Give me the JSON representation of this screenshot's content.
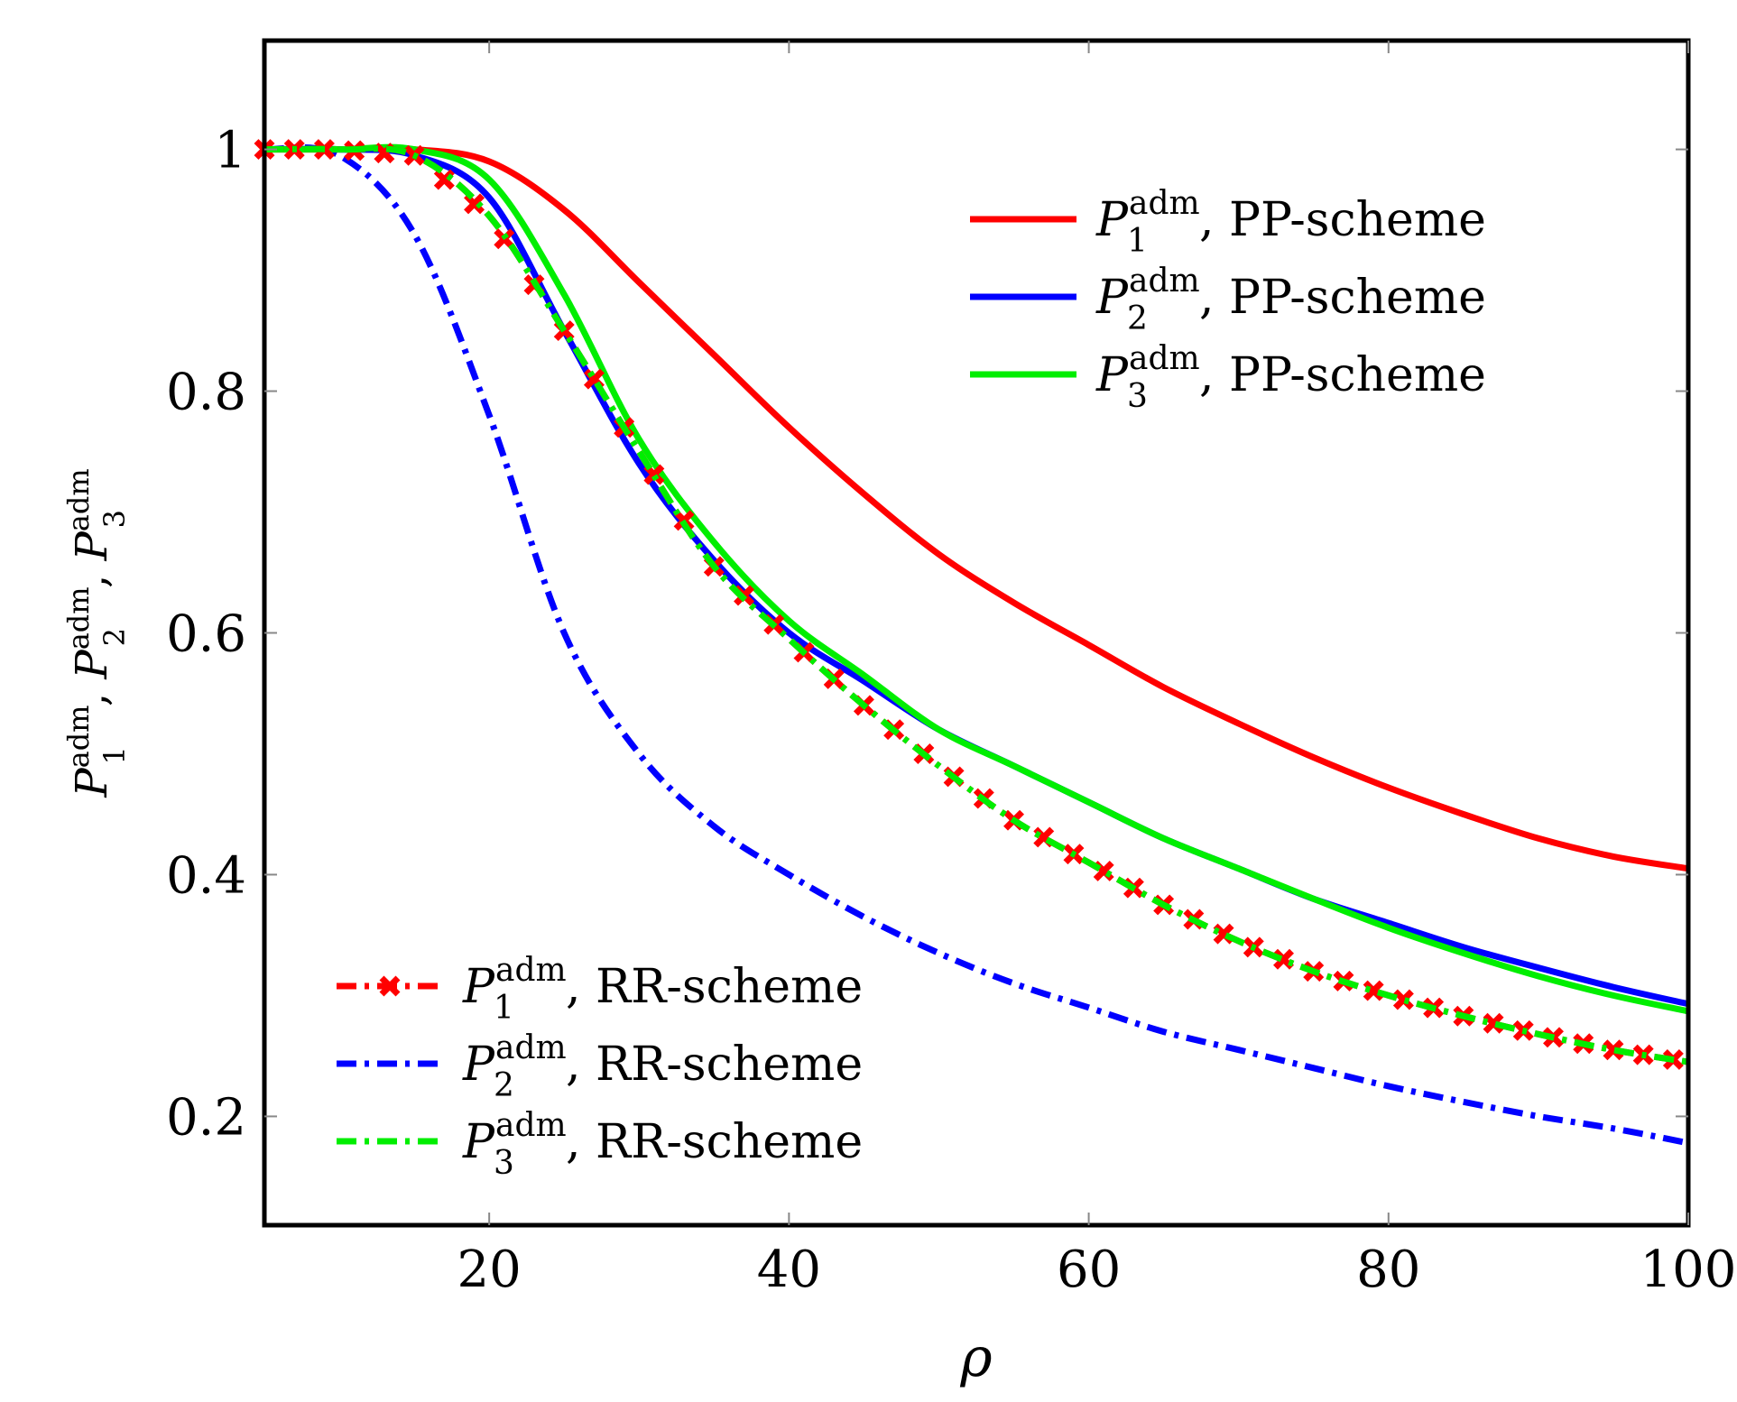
{
  "chart_data": {
    "type": "line",
    "title": "",
    "xlabel": "ρ",
    "ylabel_parts": [
      {
        "symbol": "P",
        "sup": "adm",
        "sub": "1"
      },
      {
        "symbol": "P",
        "sup": "adm",
        "sub": "2"
      },
      {
        "symbol": "P",
        "sup": "adm",
        "sub": "3"
      }
    ],
    "xlim": [
      5,
      100
    ],
    "ylim": [
      0.11,
      1.09
    ],
    "xticks": [
      20,
      40,
      60,
      80,
      100
    ],
    "yticks": [
      0.2,
      0.4,
      0.6,
      0.8,
      1
    ],
    "xtick_labels": [
      "20",
      "40",
      "60",
      "80",
      "100"
    ],
    "ytick_labels": [
      "0.2",
      "0.4",
      "0.6",
      "0.8",
      "1"
    ],
    "x": [
      5,
      10,
      15,
      20,
      25,
      30,
      35,
      40,
      45,
      50,
      55,
      60,
      65,
      70,
      75,
      80,
      85,
      90,
      95,
      100
    ],
    "series": [
      {
        "name": "P1 adm, PP-scheme",
        "symbol": "P",
        "sup": "adm",
        "sub": "1",
        "scheme": "PP-scheme",
        "color": "#ff0000",
        "style": "solid",
        "marker": "none",
        "values": [
          1.0,
          1.0,
          1.0,
          0.99,
          0.95,
          0.89,
          0.83,
          0.77,
          0.715,
          0.665,
          0.625,
          0.59,
          0.555,
          0.525,
          0.497,
          0.472,
          0.45,
          0.43,
          0.415,
          0.405
        ]
      },
      {
        "name": "P2 adm, PP-scheme",
        "symbol": "P",
        "sup": "adm",
        "sub": "2",
        "scheme": "PP-scheme",
        "color": "#0000ff",
        "style": "solid",
        "marker": "none",
        "values": [
          1.0,
          1.0,
          0.995,
          0.96,
          0.85,
          0.74,
          0.66,
          0.6,
          0.56,
          0.52,
          0.49,
          0.46,
          0.43,
          0.405,
          0.38,
          0.36,
          0.34,
          0.323,
          0.307,
          0.293
        ]
      },
      {
        "name": "P3 adm, PP-scheme",
        "symbol": "P",
        "sup": "adm",
        "sub": "3",
        "scheme": "PP-scheme",
        "color": "#00ee00",
        "style": "solid",
        "marker": "none",
        "values": [
          1.0,
          1.0,
          1.0,
          0.975,
          0.88,
          0.76,
          0.675,
          0.61,
          0.565,
          0.52,
          0.49,
          0.46,
          0.43,
          0.405,
          0.38,
          0.356,
          0.335,
          0.316,
          0.3,
          0.287
        ]
      },
      {
        "name": "P1 adm, RR-scheme",
        "symbol": "P",
        "sup": "adm",
        "sub": "1",
        "scheme": "RR-scheme",
        "color": "#ff0000",
        "style": "dashdot",
        "marker": "x",
        "values": [
          1.0,
          1.0,
          0.995,
          0.945,
          0.85,
          0.75,
          0.655,
          0.595,
          0.54,
          0.49,
          0.445,
          0.41,
          0.375,
          0.345,
          0.32,
          0.3,
          0.283,
          0.268,
          0.255,
          0.245
        ]
      },
      {
        "name": "P2 adm, RR-scheme",
        "symbol": "P",
        "sup": "adm",
        "sub": "2",
        "scheme": "RR-scheme",
        "color": "#0000ff",
        "style": "dashdot",
        "marker": "none",
        "values": [
          1.0,
          0.995,
          0.93,
          0.78,
          0.6,
          0.5,
          0.44,
          0.4,
          0.365,
          0.335,
          0.31,
          0.29,
          0.27,
          0.255,
          0.24,
          0.225,
          0.212,
          0.2,
          0.19,
          0.178
        ]
      },
      {
        "name": "P3 adm, RR-scheme",
        "symbol": "P",
        "sup": "adm",
        "sub": "3",
        "scheme": "RR-scheme",
        "color": "#00ee00",
        "style": "dashdot",
        "marker": "none",
        "values": [
          1.0,
          1.0,
          0.995,
          0.945,
          0.85,
          0.75,
          0.655,
          0.595,
          0.54,
          0.49,
          0.445,
          0.41,
          0.375,
          0.345,
          0.32,
          0.3,
          0.283,
          0.268,
          0.255,
          0.245
        ]
      }
    ],
    "legends": [
      {
        "placement": "top-right",
        "entries": [
          0,
          1,
          2
        ]
      },
      {
        "placement": "bottom-left",
        "entries": [
          3,
          4,
          5
        ]
      }
    ],
    "grid": false
  }
}
